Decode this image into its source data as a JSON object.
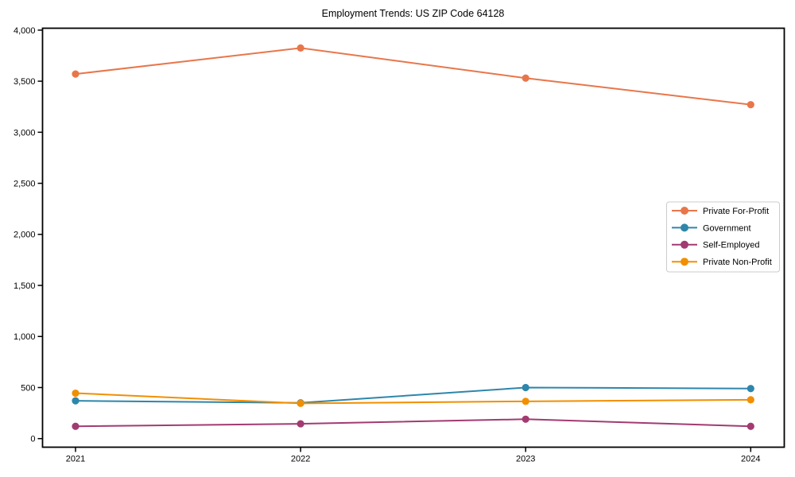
{
  "chart_data": {
    "type": "line",
    "title": "Employment Trends: US ZIP Code 64128",
    "xlabel": "",
    "ylabel": "",
    "categories": [
      "2021",
      "2022",
      "2023",
      "2024"
    ],
    "x": [
      2021,
      2022,
      2023,
      2024
    ],
    "series": [
      {
        "name": "Private For-Profit",
        "color": "#E8764B",
        "values": [
          3570,
          3825,
          3530,
          3270
        ]
      },
      {
        "name": "Government",
        "color": "#2E86AB",
        "values": [
          370,
          350,
          500,
          490
        ]
      },
      {
        "name": "Self-Employed",
        "color": "#A23B72",
        "values": [
          120,
          145,
          190,
          120
        ]
      },
      {
        "name": "Private Non-Profit",
        "color": "#F18F01",
        "values": [
          445,
          345,
          365,
          380
        ]
      }
    ],
    "yticks": [
      0,
      500,
      1000,
      1500,
      2000,
      2500,
      3000,
      3500,
      4000
    ],
    "ytick_labels": [
      "0",
      "500",
      "1,000",
      "1,500",
      "2,000",
      "2,500",
      "3,000",
      "3,500",
      "4,000"
    ],
    "ylim": [
      -86,
      4019
    ],
    "grid": false,
    "legend_position": "center right",
    "axis_color": "#000000",
    "legend_border_color": "#cccccc",
    "legend_background": "#ffffff"
  }
}
